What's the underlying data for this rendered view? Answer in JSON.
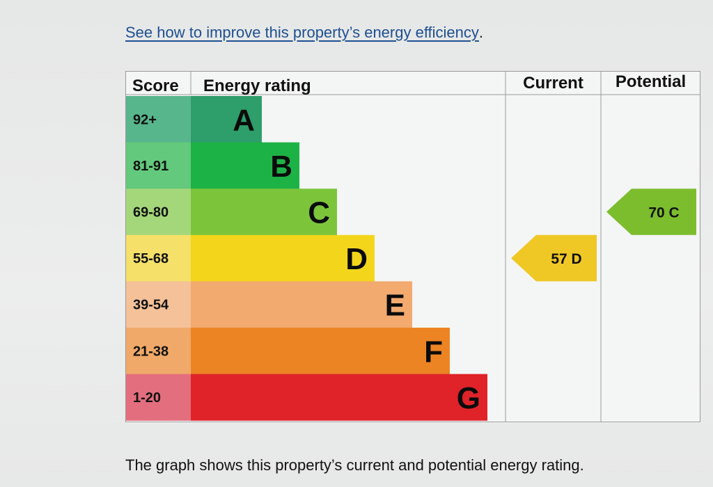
{
  "link": {
    "text": "See how to improve this property’s energy efficiency",
    "trailing": "."
  },
  "caption": "The graph shows this property’s current and potential energy rating.",
  "chart_data": {
    "type": "table",
    "headers": {
      "score": "Score",
      "rating": "Energy rating",
      "current": "Current",
      "potential": "Potential"
    },
    "bands": [
      {
        "letter": "A",
        "score": "92+",
        "color": "#2e9e6a",
        "score_color": "#58b68c"
      },
      {
        "letter": "B",
        "score": "81-91",
        "color": "#1db246",
        "score_color": "#63c97c"
      },
      {
        "letter": "C",
        "score": "69-80",
        "color": "#7cc53b",
        "score_color": "#a4d77a"
      },
      {
        "letter": "D",
        "score": "55-68",
        "color": "#f3d61b",
        "score_color": "#f5e06a"
      },
      {
        "letter": "E",
        "score": "39-54",
        "color": "#f2aa6e",
        "score_color": "#f4c199"
      },
      {
        "letter": "F",
        "score": "21-38",
        "color": "#ec8424",
        "score_color": "#f0a968"
      },
      {
        "letter": "G",
        "score": "1-20",
        "color": "#df2329",
        "score_color": "#e36e7e"
      }
    ],
    "current": {
      "value": 57,
      "band": "D",
      "label": "57 D",
      "color": "#f0c825"
    },
    "potential": {
      "value": 70,
      "band": "C",
      "label": "70 C",
      "color": "#7cbd2e"
    }
  }
}
